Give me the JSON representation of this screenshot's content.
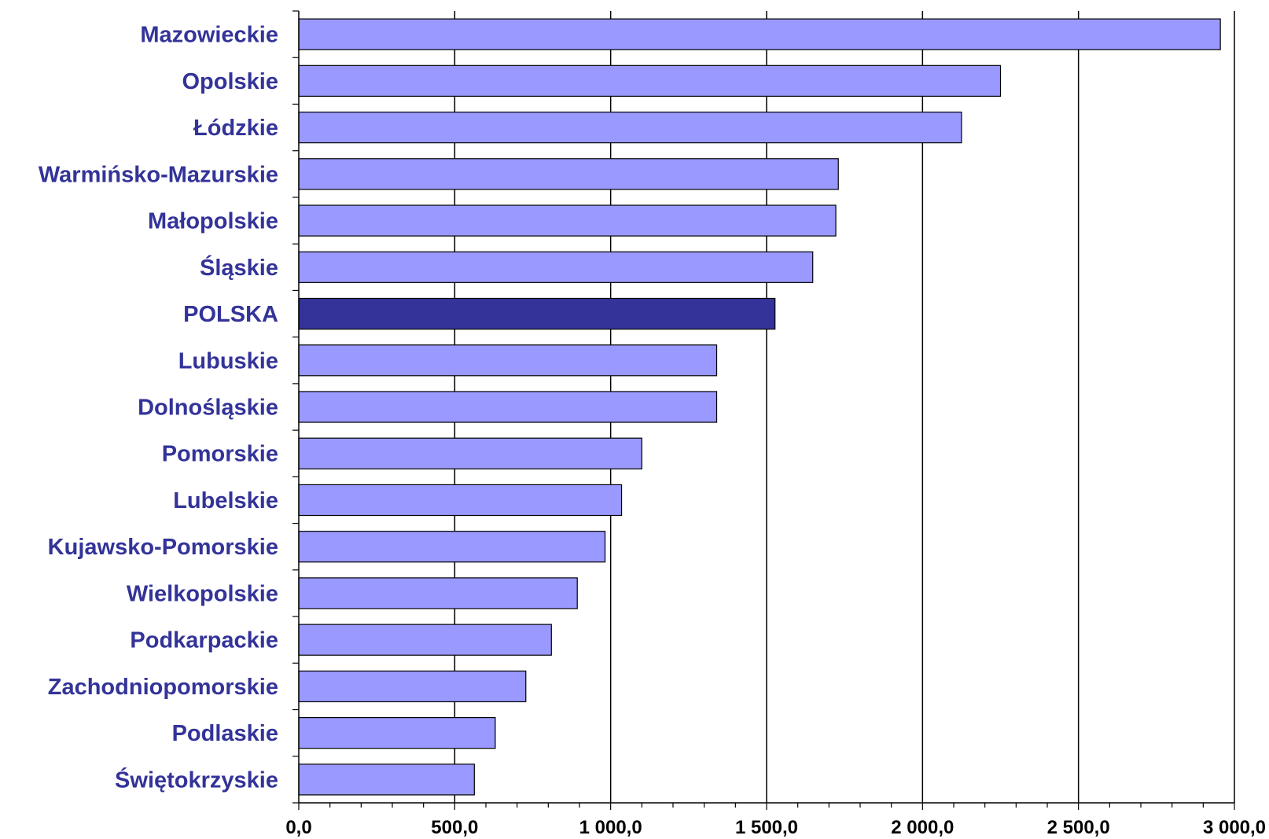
{
  "chart_data": {
    "type": "bar",
    "orientation": "horizontal",
    "title": "",
    "xlabel": "",
    "ylabel": "",
    "categories": [
      "Mazowieckie",
      "Opolskie",
      "Łódzkie",
      "Warmińsko-Mazurskie",
      "Małopolskie",
      "Śląskie",
      "POLSKA",
      "Lubuskie",
      "Dolnośląskie",
      "Pomorskie",
      "Lubelskie",
      "Kujawsko-Pomorskie",
      "Wielkopolskie",
      "Podkarpackie",
      "Zachodniopomorskie",
      "Podlaskie",
      "Świętokrzyskie"
    ],
    "values": [
      2955,
      2250,
      2125,
      1730,
      1722,
      1648,
      1527,
      1340,
      1340,
      1100,
      1035,
      982,
      893,
      810,
      728,
      630,
      563
    ],
    "xlim": [
      0,
      3000
    ],
    "x_ticks": [
      "0,0",
      "500,0",
      "1 000,0",
      "1 500,0",
      "2 000,0",
      "2 500,0",
      "3 000,0"
    ],
    "x_tick_values": [
      0,
      500,
      1000,
      1500,
      2000,
      2500,
      3000
    ],
    "grid": "vertical major gridlines",
    "legend": "none",
    "highlight_category": "POLSKA",
    "colors": {
      "bar": "#9999ff",
      "highlight_bar": "#333399",
      "bar_outline": "#000000",
      "label_text": "#333399",
      "grid": "#000000"
    }
  }
}
